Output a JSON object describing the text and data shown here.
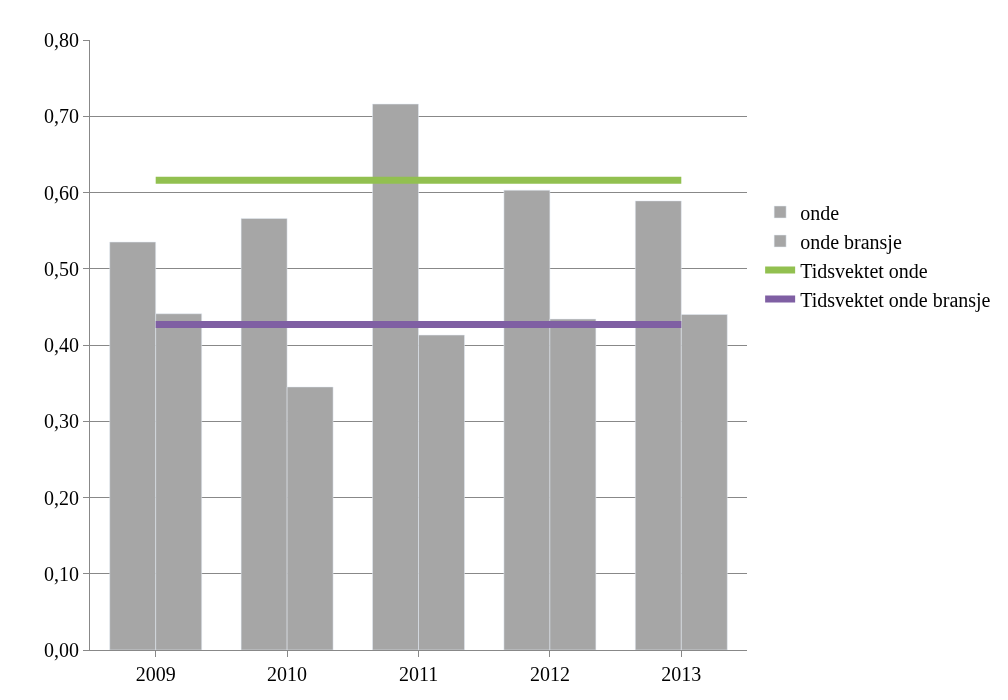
{
  "chart_data": {
    "type": "bar",
    "categories": [
      "2009",
      "2010",
      "2011",
      "2012",
      "2013"
    ],
    "series": [
      {
        "name": "onde",
        "color": "#a6a6a6",
        "values": [
          0.535,
          0.566,
          0.716,
          0.603,
          0.589
        ]
      },
      {
        "name": "onde bransje",
        "color": "#a6a6a6",
        "values": [
          0.441,
          0.345,
          0.413,
          0.434,
          0.44
        ]
      },
      {
        "name": "Tidsvektet onde",
        "type": "line",
        "color": "#92c050",
        "values": [
          0.616,
          0.616,
          0.616,
          0.616,
          0.616
        ]
      },
      {
        "name": "Tidsvektet onde bransje",
        "type": "line",
        "color": "#7f5fa3",
        "values": [
          0.427,
          0.427,
          0.427,
          0.427,
          0.427
        ]
      }
    ],
    "ylim": [
      0,
      0.8
    ],
    "yticks": [
      {
        "value": 0,
        "label": "0,00"
      },
      {
        "value": 0.1,
        "label": "0,10"
      },
      {
        "value": 0.2,
        "label": "0,20"
      },
      {
        "value": 0.3,
        "label": "0,30"
      },
      {
        "value": 0.4,
        "label": "0,40"
      },
      {
        "value": 0.5,
        "label": "0,50"
      },
      {
        "value": 0.6,
        "label": "0,60"
      },
      {
        "value": 0.7,
        "label": "0,70"
      },
      {
        "value": 0.8,
        "label": "0,80"
      }
    ],
    "grid": "y",
    "legend": "right",
    "marker": "none"
  }
}
